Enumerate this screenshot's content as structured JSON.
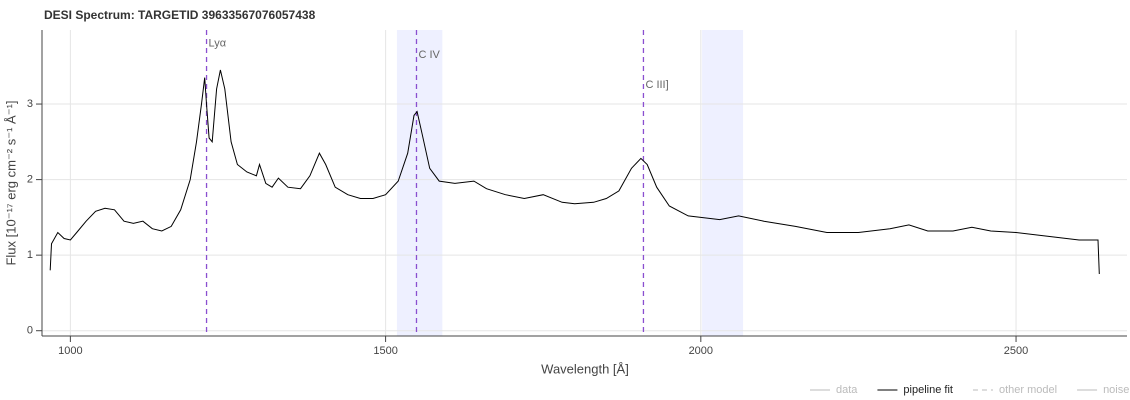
{
  "chart_data": {
    "type": "line",
    "title": "DESI Spectrum: TARGETID 39633567076057438",
    "x_label": "Wavelength [Å]",
    "y_label": "Flux [10⁻¹⁷ erg cm⁻² s⁻¹ Å⁻¹]",
    "xlim": [
      955,
      2676
    ],
    "ylim": [
      -0.07,
      3.98
    ],
    "xticks": [
      1000,
      1500,
      2000,
      2500
    ],
    "yticks": [
      0,
      1,
      2,
      3
    ],
    "grid": true,
    "x": [
      968,
      970,
      980,
      990,
      1000,
      1010,
      1025,
      1040,
      1055,
      1070,
      1085,
      1100,
      1115,
      1130,
      1145,
      1160,
      1175,
      1190,
      1200,
      1208,
      1213,
      1216,
      1220,
      1225,
      1232,
      1238,
      1245,
      1255,
      1265,
      1280,
      1295,
      1300,
      1310,
      1320,
      1330,
      1345,
      1365,
      1380,
      1395,
      1405,
      1420,
      1440,
      1460,
      1480,
      1500,
      1520,
      1535,
      1545,
      1550,
      1558,
      1570,
      1585,
      1610,
      1640,
      1660,
      1690,
      1720,
      1750,
      1780,
      1800,
      1830,
      1850,
      1870,
      1890,
      1905,
      1915,
      1930,
      1950,
      1980,
      2000,
      2030,
      2060,
      2100,
      2150,
      2200,
      2250,
      2300,
      2330,
      2360,
      2400,
      2430,
      2460,
      2500,
      2550,
      2600,
      2630,
      2632
    ],
    "series": [
      {
        "name": "pipeline fit",
        "color": "#000000",
        "values": [
          0.8,
          1.15,
          1.3,
          1.22,
          1.2,
          1.3,
          1.45,
          1.58,
          1.62,
          1.6,
          1.45,
          1.42,
          1.45,
          1.35,
          1.32,
          1.38,
          1.6,
          2.0,
          2.5,
          3.0,
          3.35,
          3.0,
          2.55,
          2.5,
          3.2,
          3.45,
          3.2,
          2.5,
          2.2,
          2.1,
          2.05,
          2.2,
          1.95,
          1.9,
          2.02,
          1.9,
          1.88,
          2.05,
          2.35,
          2.2,
          1.9,
          1.8,
          1.75,
          1.75,
          1.8,
          1.98,
          2.35,
          2.85,
          2.9,
          2.6,
          2.15,
          1.98,
          1.95,
          1.98,
          1.88,
          1.8,
          1.75,
          1.8,
          1.7,
          1.68,
          1.7,
          1.75,
          1.85,
          2.15,
          2.28,
          2.2,
          1.9,
          1.65,
          1.52,
          1.5,
          1.47,
          1.52,
          1.45,
          1.38,
          1.3,
          1.3,
          1.35,
          1.4,
          1.32,
          1.32,
          1.37,
          1.32,
          1.3,
          1.25,
          1.2,
          1.2,
          0.75
        ]
      }
    ],
    "bands": [
      {
        "x0": 1518,
        "x1": 1590,
        "color": "#eef0ff"
      },
      {
        "x0": 2002,
        "x1": 2067,
        "color": "#eef0ff"
      }
    ],
    "lines": [
      {
        "x": 1216,
        "label": "Lyα",
        "label_y": 3.8,
        "color": "#8a4fd0"
      },
      {
        "x": 1549,
        "label": "C IV",
        "label_y": 3.65,
        "color": "#8a4fd0"
      },
      {
        "x": 1909,
        "label": "C III]",
        "label_y": 3.25,
        "color": "#8a4fd0"
      }
    ],
    "legend": [
      {
        "name": "data",
        "color": "#bbbbbb",
        "dash": false,
        "muted": true
      },
      {
        "name": "pipeline fit",
        "color": "#000000",
        "dash": false,
        "muted": false
      },
      {
        "name": "other model",
        "color": "#bbbbbb",
        "dash": true,
        "muted": true
      },
      {
        "name": "noise",
        "color": "#bbbbbb",
        "dash": false,
        "muted": true
      }
    ]
  }
}
